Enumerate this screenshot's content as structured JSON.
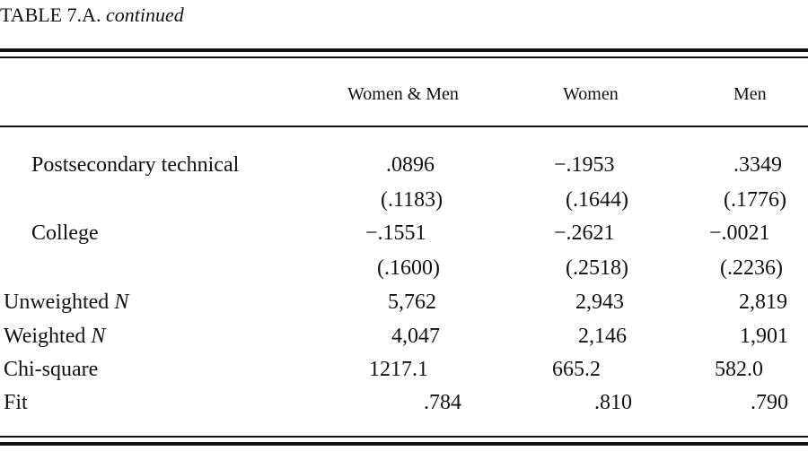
{
  "caption": {
    "label": "TABLE 7.A.",
    "continued": "continued"
  },
  "columns": [
    "Women & Men",
    "Women",
    "Men"
  ],
  "rows": [
    {
      "label": "Postsecondary technical",
      "values": [
        ".0896",
        "−.1953",
        ".3349"
      ]
    },
    {
      "label": "",
      "values": [
        "(.1183)",
        "(.1644)",
        "(.1776)"
      ]
    },
    {
      "label": "College",
      "values": [
        "−.1551",
        "−.2621",
        "−.0021"
      ]
    },
    {
      "label": "",
      "values": [
        "(.1600)",
        "(.2518)",
        "(.2236)"
      ]
    },
    {
      "label": "Unweighted",
      "label_italic": "N",
      "values": [
        "5,762",
        "2,943",
        "2,819"
      ]
    },
    {
      "label": "Weighted",
      "label_italic": "N",
      "values": [
        "4,047",
        "2,146",
        "1,901"
      ]
    },
    {
      "label": "Chi-square",
      "values": [
        "1217.1",
        "665.2",
        "582.0"
      ]
    },
    {
      "label": "Fit",
      "values": [
        ".784",
        ".810",
        ".790"
      ]
    }
  ]
}
